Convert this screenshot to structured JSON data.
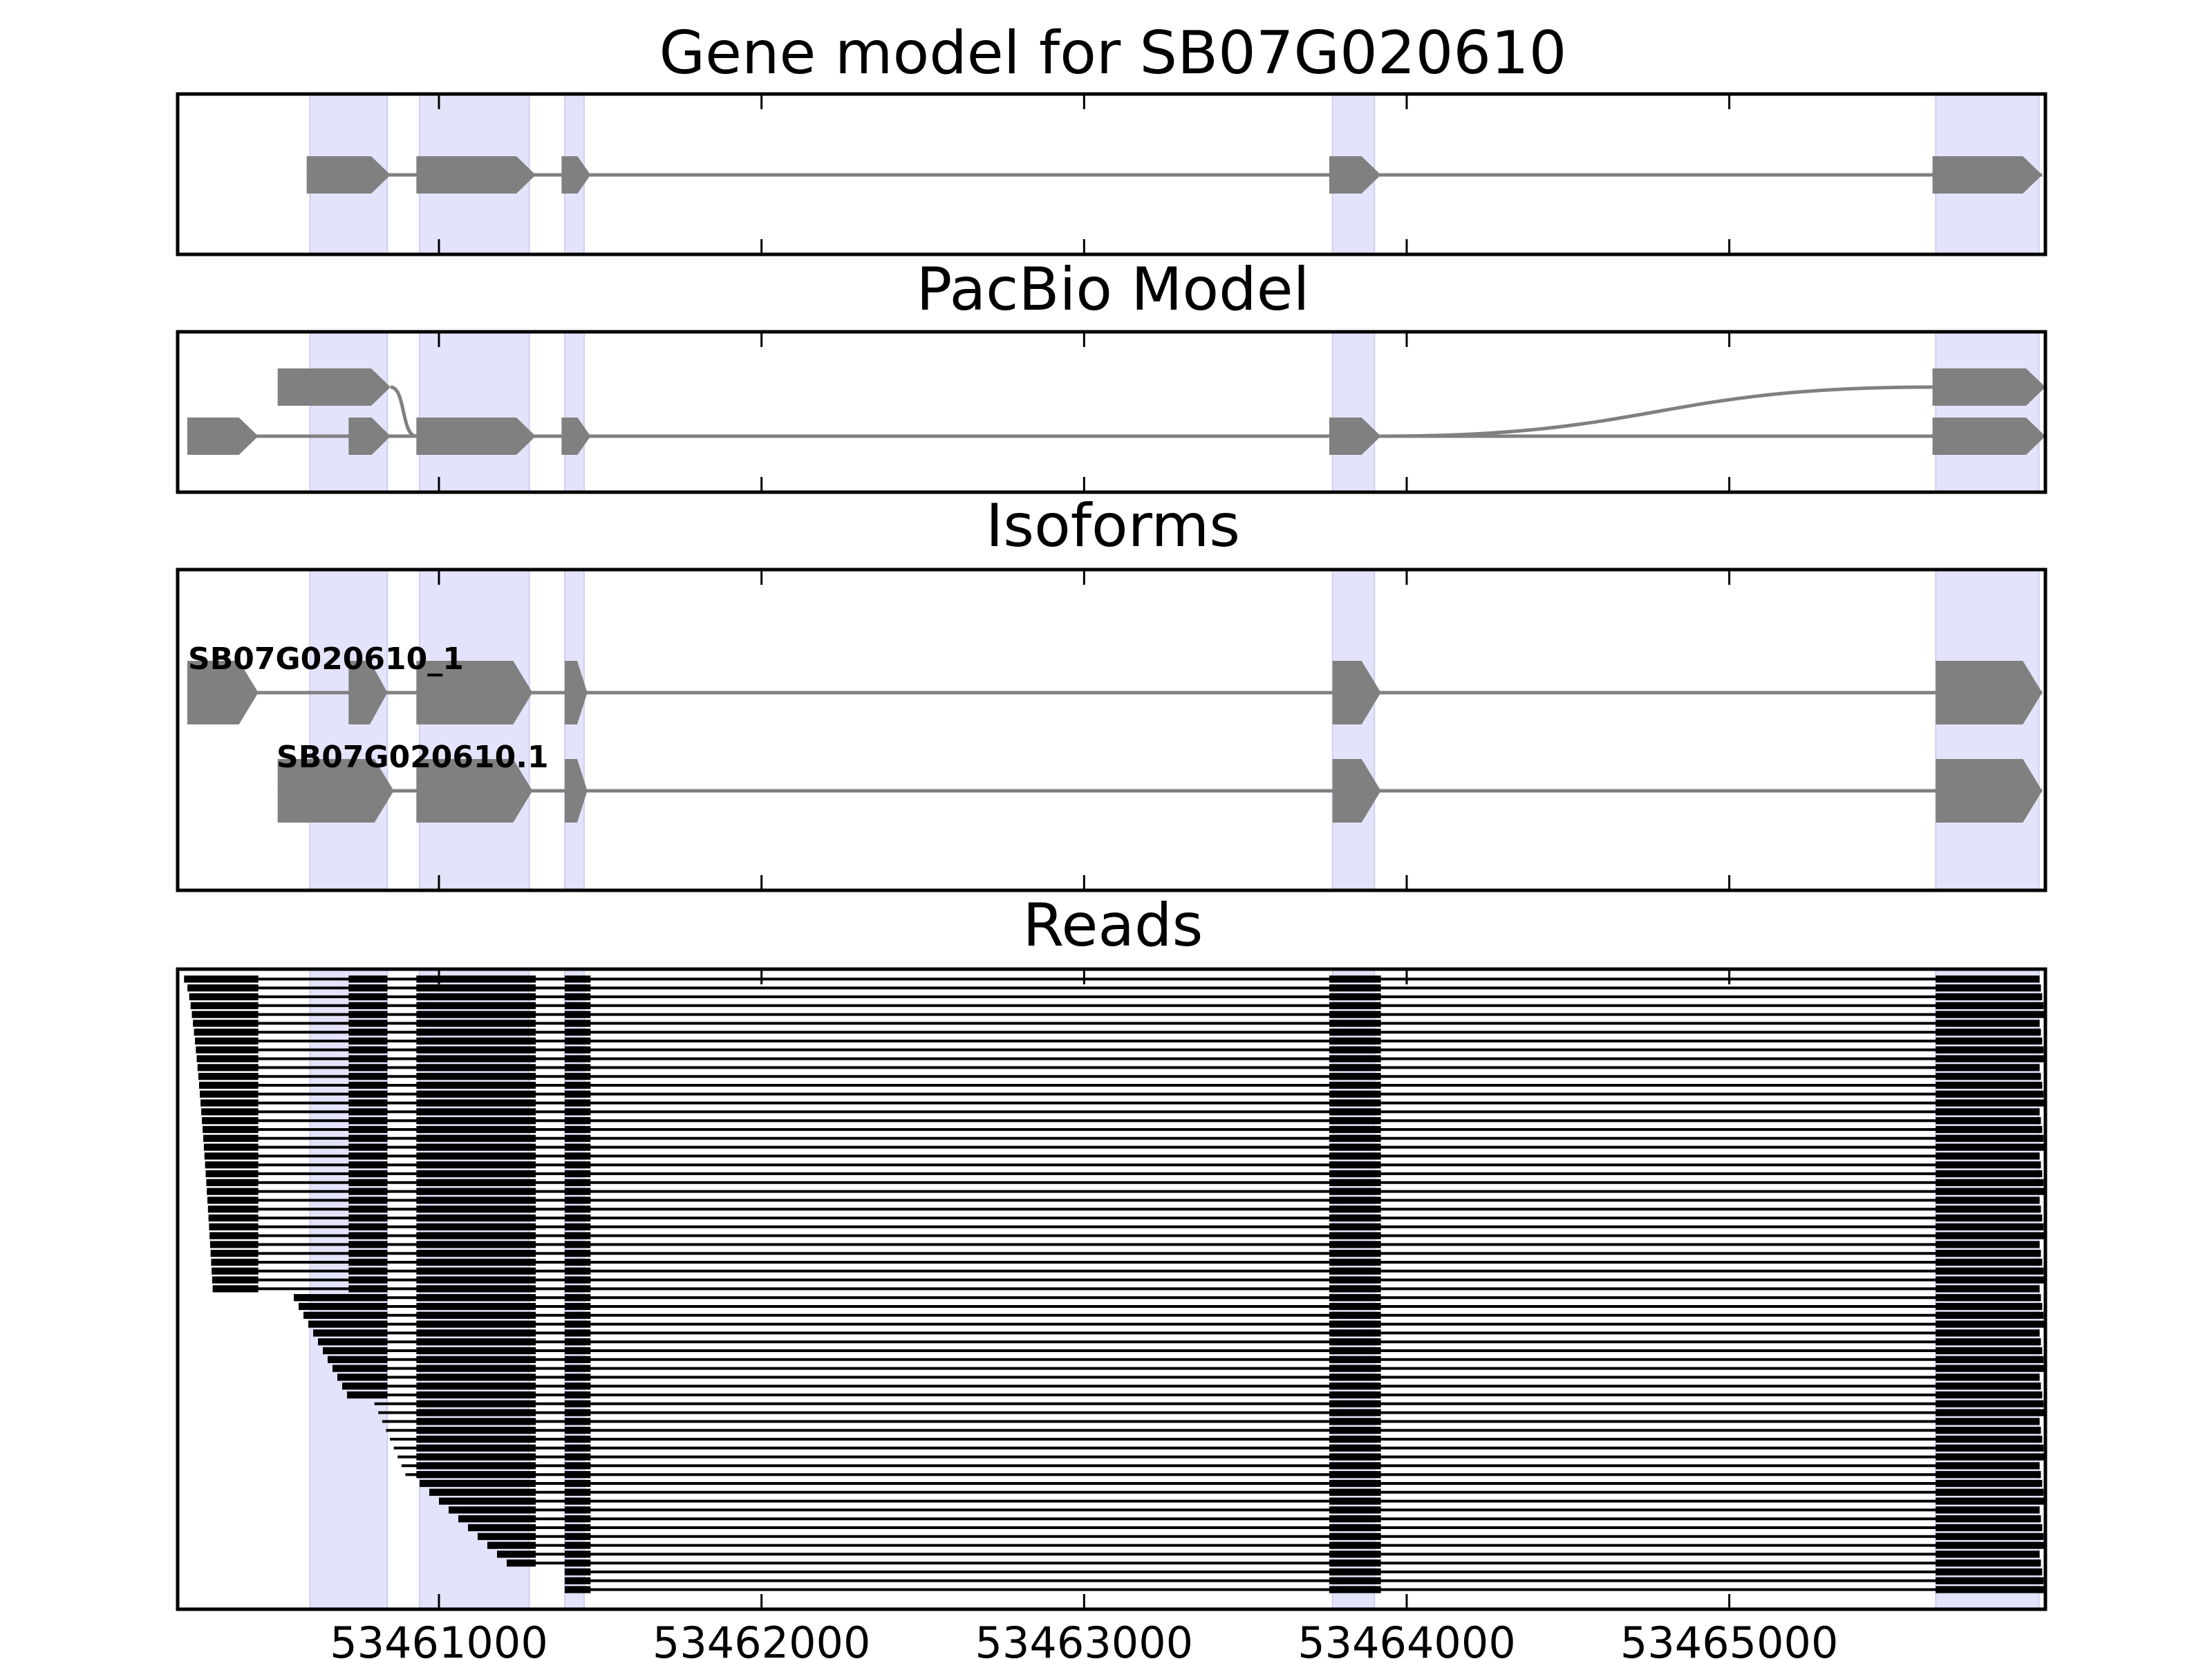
{
  "chart_data": {
    "type": "gene-structure",
    "x_ticks": [
      53461000,
      53462000,
      53463000,
      53464000,
      53465000
    ],
    "xlim": [
      53460190,
      53465980
    ],
    "colors": {
      "highlight": "#e3e3fb",
      "feature": "#808080",
      "read": "#000000",
      "axis": "#000000"
    },
    "exon_highlights": [
      [
        53460600,
        53460840
      ],
      [
        53460940,
        53461280
      ],
      [
        53461390,
        53461450
      ],
      [
        53463770,
        53463900
      ],
      [
        53465640,
        53465960
      ]
    ],
    "panels": [
      {
        "title": "Gene model for SB07G020610",
        "transcripts": [
          {
            "exons": [
              [
                53460590,
                53460850
              ],
              [
                53460930,
                53461300
              ],
              [
                53461380,
                53461470
              ],
              [
                53463760,
                53463920
              ],
              [
                53465630,
                53465970
              ]
            ]
          }
        ]
      },
      {
        "title": "PacBio Model",
        "transcripts": [
          {
            "exons": [
              [
                53460220,
                53460440
              ],
              [
                53460720,
                53460850
              ],
              [
                53460930,
                53461300
              ],
              [
                53461380,
                53461470
              ],
              [
                53463760,
                53463920
              ],
              [
                53465630,
                53465980
              ]
            ]
          },
          {
            "exons": [
              [
                53460500,
                53460850
              ],
              [
                53460930,
                53461300
              ],
              [
                53461380,
                53461470
              ],
              [
                53463760,
                53463920
              ],
              [
                53465630,
                53465980
              ]
            ]
          }
        ]
      },
      {
        "title": "Isoforms",
        "transcripts": [
          {
            "name": "SB07G020610_1",
            "exons": [
              [
                53460220,
                53460440
              ],
              [
                53460720,
                53460840
              ],
              [
                53460930,
                53461290
              ],
              [
                53461390,
                53461460
              ],
              [
                53463770,
                53463920
              ],
              [
                53465640,
                53465970
              ]
            ]
          },
          {
            "name": "SB07G020610.1",
            "exons": [
              [
                53460500,
                53460860
              ],
              [
                53460930,
                53461290
              ],
              [
                53461390,
                53461460
              ],
              [
                53463770,
                53463920
              ],
              [
                53465640,
                53465970
              ]
            ]
          }
        ]
      },
      {
        "title": "Reads",
        "read_count": 70,
        "read_exons": [
          [
            53460190,
            53460440
          ],
          [
            53460720,
            53460840
          ],
          [
            53460930,
            53461300
          ],
          [
            53461390,
            53461470
          ],
          [
            53463760,
            53463920
          ],
          [
            53465640,
            53465970
          ]
        ]
      }
    ]
  }
}
